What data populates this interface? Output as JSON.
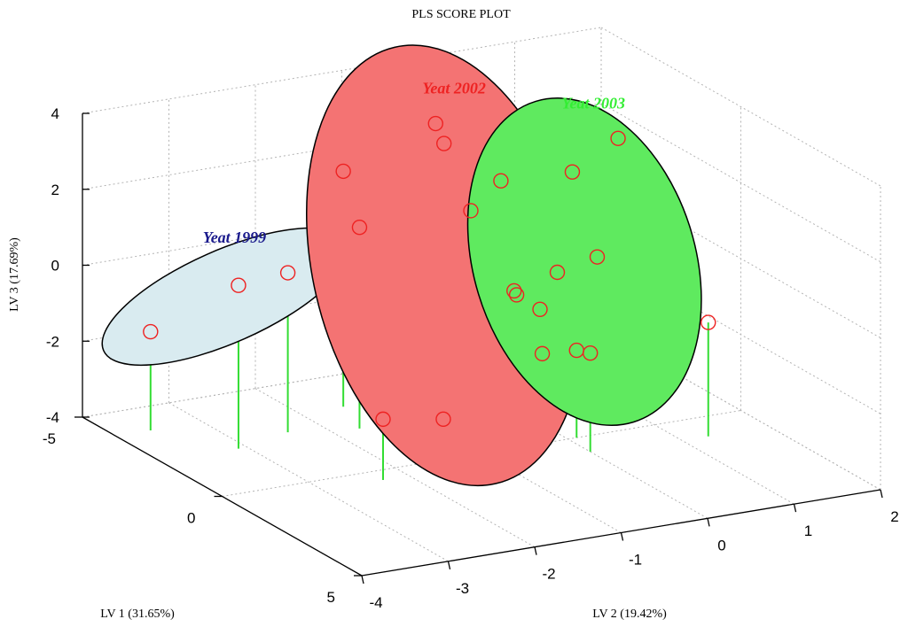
{
  "chart_data": {
    "type": "scatter",
    "subtype": "3d-scatter-with-stems",
    "title": "PLS SCORE PLOT",
    "xlabel": "LV 1 (31.65%)",
    "ylabel": "LV 2 (19.42%)",
    "zlabel": "LV 3 (17.69%)",
    "xlim": [
      -5,
      5
    ],
    "ylim": [
      -4,
      2
    ],
    "zlim": [
      -4,
      4
    ],
    "x_ticks": [
      "-5",
      "0",
      "5"
    ],
    "y_ticks": [
      "-4",
      "-3",
      "-2",
      "-1",
      "0",
      "1",
      "2"
    ],
    "z_ticks": [
      "-4",
      "-2",
      "0",
      "2",
      "4"
    ],
    "grid": true,
    "stem_color": "#33dd33",
    "marker_color": "#ee2222",
    "groups": [
      {
        "name": "Year 1999",
        "label": "Yeat 1999",
        "label_color": "#1a1a8c",
        "ellipse_fill": "#d9ebf0",
        "points": [
          {
            "lv1": -3.8,
            "lv2": -3.6,
            "lv3": -1.4
          },
          {
            "lv1": -2.2,
            "lv2": -3.1,
            "lv3": 0.3
          },
          {
            "lv1": -2.6,
            "lv2": -2.4,
            "lv3": 0.2
          }
        ]
      },
      {
        "name": "Year 2002",
        "label": "Yeat 2002",
        "label_color": "#ee2222",
        "ellipse_fill": "#f47373",
        "points": [
          {
            "lv1": -3.4,
            "lv2": -1.5,
            "lv3": 2.2
          },
          {
            "lv1": -2.2,
            "lv2": -1.7,
            "lv3": 1.3
          },
          {
            "lv1": 0.5,
            "lv2": -2.3,
            "lv3": -2.4
          },
          {
            "lv1": 0.8,
            "lv2": -1.7,
            "lv3": -2.5
          },
          {
            "lv1": -1.0,
            "lv2": -0.8,
            "lv3": 1.9
          },
          {
            "lv1": -3.5,
            "lv2": -0.4,
            "lv3": 3.0
          },
          {
            "lv1": -3.2,
            "lv2": -0.4,
            "lv3": 2.6
          },
          {
            "lv1": -0.6,
            "lv2": -0.4,
            "lv3": -0.3
          },
          {
            "lv1": -1.0,
            "lv2": -0.3,
            "lv3": -0.4
          },
          {
            "lv1": -0.3,
            "lv2": -0.2,
            "lv3": -1.8
          }
        ]
      },
      {
        "name": "Year 2003",
        "label": "Yeat 2003",
        "label_color": "#33ee33",
        "ellipse_fill": "#5fea5f",
        "points": [
          {
            "lv1": -2.4,
            "lv2": 0.0,
            "lv3": 1.8
          },
          {
            "lv1": -1.3,
            "lv2": 1.0,
            "lv3": 3.0
          },
          {
            "lv1": -1.7,
            "lv2": 0.6,
            "lv3": 2.1
          },
          {
            "lv1": -1.0,
            "lv2": 0.2,
            "lv3": -0.1
          },
          {
            "lv1": -1.0,
            "lv2": 0.0,
            "lv3": -1.0
          },
          {
            "lv1": -0.5,
            "lv2": 0.5,
            "lv3": 0.4
          },
          {
            "lv1": 0.8,
            "lv2": 0.0,
            "lv3": -1.4
          },
          {
            "lv1": 0.0,
            "lv2": 0.1,
            "lv3": -1.7
          },
          {
            "lv1": 1.0,
            "lv2": 1.3,
            "lv3": -1.0
          }
        ]
      }
    ]
  }
}
